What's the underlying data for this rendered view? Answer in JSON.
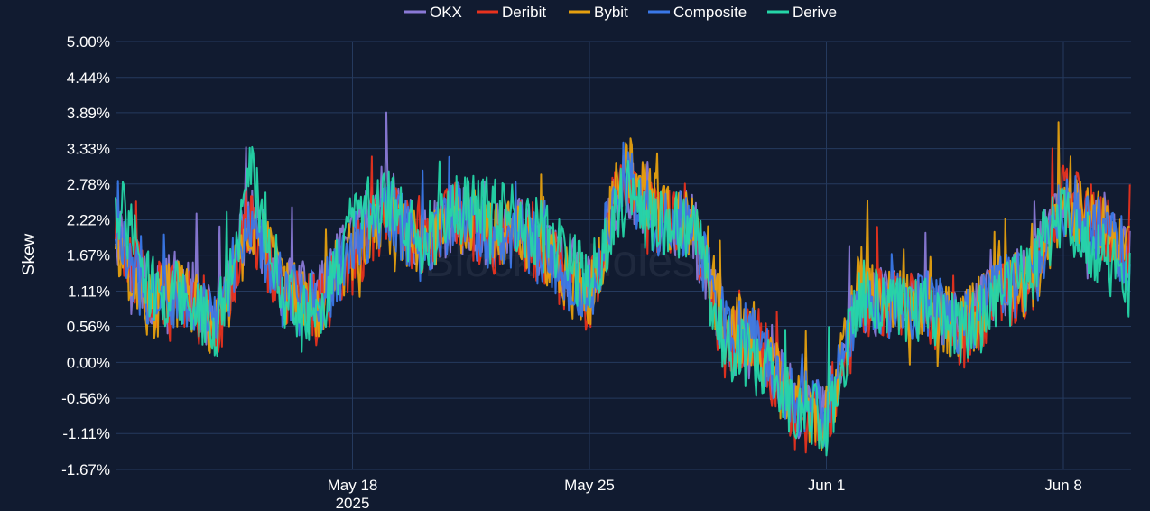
{
  "chart_data": {
    "type": "line",
    "ylabel": "Skew",
    "watermark": "BlockScholes",
    "ylim": [
      -1.67,
      5.0
    ],
    "yticks": [
      "5.00%",
      "4.44%",
      "3.89%",
      "3.33%",
      "2.78%",
      "2.22%",
      "1.67%",
      "1.11%",
      "0.56%",
      "0.00%",
      "-0.56%",
      "-1.11%",
      "-1.67%"
    ],
    "ytick_values": [
      5.0,
      4.44,
      3.89,
      3.33,
      2.78,
      2.22,
      1.67,
      1.11,
      0.56,
      0.0,
      -0.56,
      -1.11,
      -1.67
    ],
    "xlim": [
      "2025-05-11",
      "2025-06-10"
    ],
    "xticks": [
      {
        "date": "2025-05-18",
        "label": "May 18",
        "sublabel": "2025"
      },
      {
        "date": "2025-05-25",
        "label": "May 25",
        "sublabel": ""
      },
      {
        "date": "2025-06-01",
        "label": "Jun 1",
        "sublabel": ""
      },
      {
        "date": "2025-06-08",
        "label": "Jun 8",
        "sublabel": ""
      }
    ],
    "legend_position": "top-center",
    "grid": true,
    "x": [
      "2025-05-11",
      "2025-05-12",
      "2025-05-13",
      "2025-05-14",
      "2025-05-15",
      "2025-05-16",
      "2025-05-17",
      "2025-05-18",
      "2025-05-19",
      "2025-05-20",
      "2025-05-21",
      "2025-05-22",
      "2025-05-23",
      "2025-05-24",
      "2025-05-25",
      "2025-05-26",
      "2025-05-27",
      "2025-05-28",
      "2025-05-29",
      "2025-05-30",
      "2025-05-31",
      "2025-06-01",
      "2025-06-02",
      "2025-06-03",
      "2025-06-04",
      "2025-06-05",
      "2025-06-06",
      "2025-06-07",
      "2025-06-08",
      "2025-06-09",
      "2025-06-10"
    ],
    "series": [
      {
        "name": "OKX",
        "color": "#8a79d6",
        "values": [
          2.1,
          1.1,
          1.2,
          0.6,
          2.3,
          1.1,
          1.0,
          1.9,
          2.6,
          1.8,
          2.3,
          2.0,
          2.1,
          1.6,
          1.2,
          2.8,
          2.1,
          2.2,
          0.4,
          0.2,
          -0.6,
          -0.8,
          1.0,
          0.9,
          0.9,
          0.5,
          1.2,
          1.3,
          2.6,
          2.0,
          1.7
        ]
      },
      {
        "name": "Deribit",
        "color": "#e8321e",
        "values": [
          2.1,
          1.0,
          1.1,
          0.5,
          2.2,
          1.0,
          0.8,
          1.6,
          2.3,
          1.9,
          2.4,
          1.9,
          2.0,
          1.5,
          1.0,
          3.0,
          2.2,
          2.3,
          0.3,
          0.3,
          -0.8,
          -1.0,
          0.9,
          0.9,
          0.8,
          0.4,
          1.0,
          1.2,
          2.6,
          2.2,
          1.6
        ]
      },
      {
        "name": "Bybit",
        "color": "#e6a00f",
        "values": [
          1.9,
          0.9,
          1.1,
          0.5,
          2.2,
          1.1,
          0.9,
          1.8,
          2.2,
          1.8,
          2.3,
          2.0,
          2.0,
          1.5,
          0.9,
          3.1,
          2.4,
          2.1,
          0.6,
          0.4,
          -0.8,
          -0.9,
          1.3,
          0.9,
          0.9,
          0.5,
          1.1,
          1.2,
          2.5,
          2.2,
          1.6
        ]
      },
      {
        "name": "Composite",
        "color": "#3a78e8",
        "values": [
          2.0,
          1.0,
          1.1,
          0.6,
          2.3,
          1.0,
          0.9,
          1.8,
          2.4,
          1.8,
          2.3,
          2.0,
          2.0,
          1.5,
          1.1,
          2.9,
          2.2,
          2.2,
          0.5,
          0.3,
          -0.6,
          -0.8,
          1.0,
          0.9,
          0.9,
          0.5,
          1.1,
          1.2,
          2.5,
          2.1,
          1.6
        ]
      },
      {
        "name": "Derive",
        "color": "#25d6a8",
        "values": [
          2.6,
          1.2,
          1.0,
          0.6,
          2.9,
          1.0,
          0.8,
          2.2,
          2.5,
          1.8,
          2.4,
          2.4,
          2.2,
          1.8,
          1.2,
          2.7,
          2.1,
          2.2,
          0.3,
          0.0,
          -0.6,
          -1.0,
          1.1,
          0.8,
          0.8,
          0.4,
          0.9,
          1.4,
          2.4,
          1.7,
          1.2
        ]
      }
    ]
  }
}
